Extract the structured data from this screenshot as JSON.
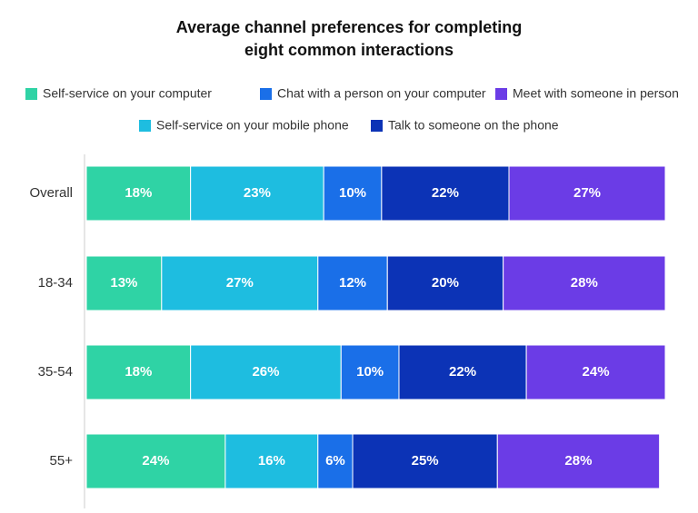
{
  "chart_data": {
    "type": "stacked-bar-horizontal",
    "title": "Average channel preferences for completing eight common interactions",
    "categories": [
      "Overall",
      "18-34",
      "35-54",
      "55+"
    ],
    "xlim": [
      0,
      100
    ],
    "series": [
      {
        "name": "Self-service on your computer",
        "color": "#2fd3a5",
        "values": [
          18,
          13,
          18,
          24
        ],
        "value_labels": [
          "18%",
          "13%",
          "18%",
          "24%"
        ]
      },
      {
        "name": "Self-service on your mobile phone",
        "color": "#1ebde0",
        "values": [
          23,
          27,
          26,
          16
        ],
        "value_labels": [
          "23%",
          "27%",
          "26%",
          "16%"
        ]
      },
      {
        "name": "Chat with a person on your computer",
        "color": "#1a6fe8",
        "values": [
          10,
          12,
          10,
          6
        ],
        "value_labels": [
          "10%",
          "12%",
          "10%",
          "6%"
        ]
      },
      {
        "name": "Talk to someone on the phone",
        "color": "#0c33b6",
        "values": [
          22,
          20,
          22,
          25
        ],
        "value_labels": [
          "22%",
          "20%",
          "22%",
          "25%"
        ]
      },
      {
        "name": "Meet with someone in person",
        "color": "#6b3ce6",
        "values": [
          27,
          28,
          24,
          28
        ],
        "value_labels": [
          "27%",
          "28%",
          "24%",
          "28%"
        ]
      }
    ]
  }
}
